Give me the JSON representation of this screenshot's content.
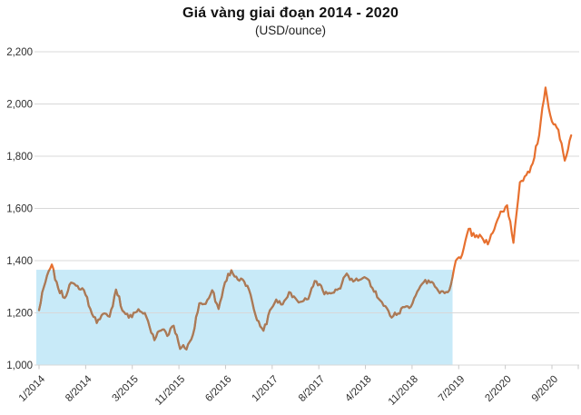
{
  "header": {
    "title": "Giá vàng giai đoạn 2014 - 2020",
    "subtitle": "(USD/ounce)"
  },
  "colors": {
    "line_orange": "#E7702F",
    "line_brown": "#A87A58",
    "band_blue": "#C8EAF8",
    "grid": "#D8D8D8",
    "tick": "#C9C9C9",
    "axis_text": "#2E2E2E",
    "title_text": "#111111"
  },
  "chart_data": {
    "type": "line",
    "title": "Giá vàng giai đoạn 2014 - 2020",
    "subtitle": "(USD/ounce)",
    "unit": "USD/ounce",
    "grid": true,
    "legend_position": "none",
    "ylim": [
      1000,
      2200
    ],
    "y_ticks": [
      1000,
      1200,
      1400,
      1600,
      1800,
      2000,
      2200
    ],
    "y_tick_labels": [
      "1,000",
      "1,200",
      "1,400",
      "1,600",
      "1,800",
      "2,000",
      "2,200"
    ],
    "x_tick_labels": [
      "1/2014",
      "8/2014",
      "3/2015",
      "11/2015",
      "6/2016",
      "1/2017",
      "8/2017",
      "4/2018",
      "11/2018",
      "7/2019",
      "2/2020",
      "9/2020"
    ],
    "highlight_band": {
      "from_month": "1/2014",
      "to_month": "6/2019",
      "y_min": 1000,
      "y_max": 1365,
      "color": "#C8EAF8"
    },
    "series": [
      {
        "name": "gold-price-usd-per-ounce",
        "frequency": "monthly",
        "start": "1/2014",
        "end": "12/2020",
        "color_outside_band": "#E7702F",
        "color_inside_band": "#A87A58",
        "values": [
          1210,
          1320,
          1385,
          1290,
          1255,
          1318,
          1300,
          1290,
          1215,
          1165,
          1198,
          1185,
          1290,
          1210,
          1185,
          1200,
          1205,
          1172,
          1095,
          1135,
          1115,
          1150,
          1065,
          1062,
          1115,
          1240,
          1235,
          1290,
          1215,
          1320,
          1360,
          1325,
          1320,
          1270,
          1175,
          1130,
          1210,
          1250,
          1230,
          1280,
          1255,
          1245,
          1255,
          1320,
          1300,
          1270,
          1280,
          1295,
          1350,
          1320,
          1330,
          1335,
          1295,
          1255,
          1222,
          1185,
          1195,
          1225,
          1225,
          1280,
          1320,
          1320,
          1295,
          1280,
          1285,
          1400,
          1420,
          1525,
          1490,
          1495,
          1465,
          1520,
          1585,
          1610,
          1470,
          1700,
          1730,
          1770,
          1880,
          2063,
          1930,
          1900,
          1780,
          1880
        ]
      }
    ]
  }
}
